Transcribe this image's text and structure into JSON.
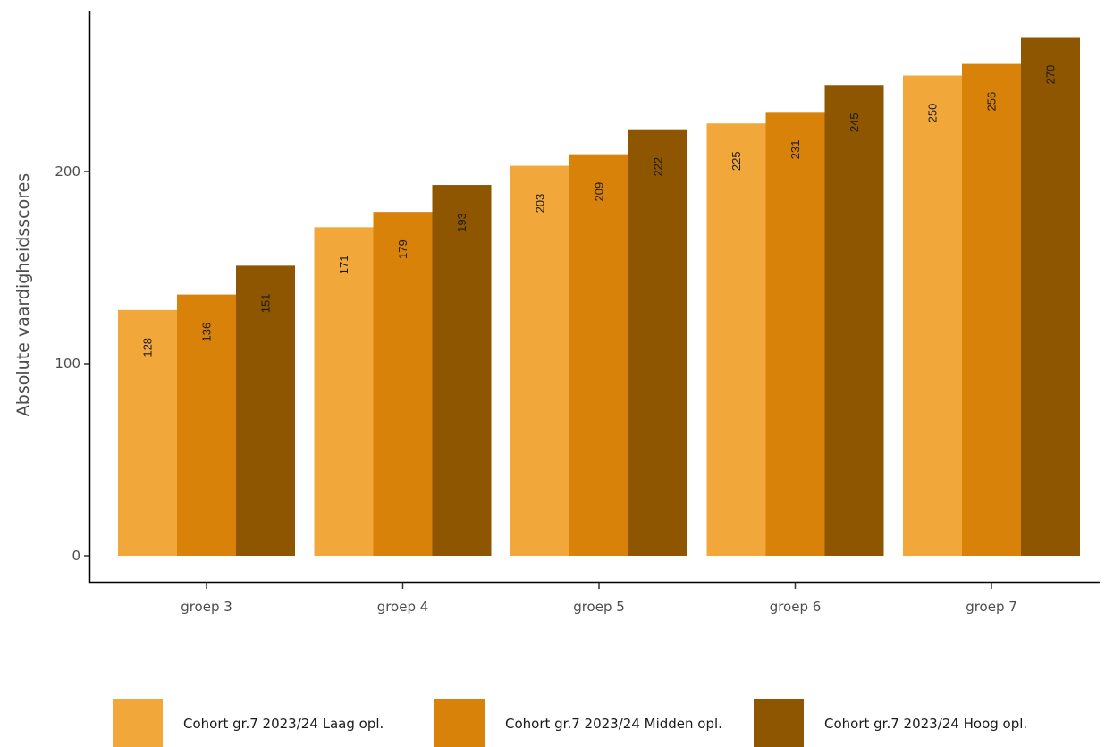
{
  "chart_data": {
    "type": "bar",
    "ylabel": "Absolute vaardigheidsscores",
    "categories": [
      "groep 3",
      "groep 4",
      "groep 5",
      "groep 6",
      "groep 7"
    ],
    "series": [
      {
        "name": "Cohort gr.7 2023/24 Laag opl.",
        "color": "#F2A73B",
        "values": [
          128,
          171,
          203,
          225,
          250
        ]
      },
      {
        "name": "Cohort gr.7 2023/24 Midden opl.",
        "color": "#D88209",
        "values": [
          136,
          179,
          209,
          231,
          256
        ]
      },
      {
        "name": "Cohort gr.7 2023/24 Hoog opl.",
        "color": "#8E5600",
        "values": [
          151,
          193,
          222,
          245,
          270
        ]
      }
    ],
    "yticks": [
      0,
      100,
      200
    ],
    "ylim": [
      0,
      280
    ],
    "grid": false,
    "legend_position": "bottom"
  }
}
